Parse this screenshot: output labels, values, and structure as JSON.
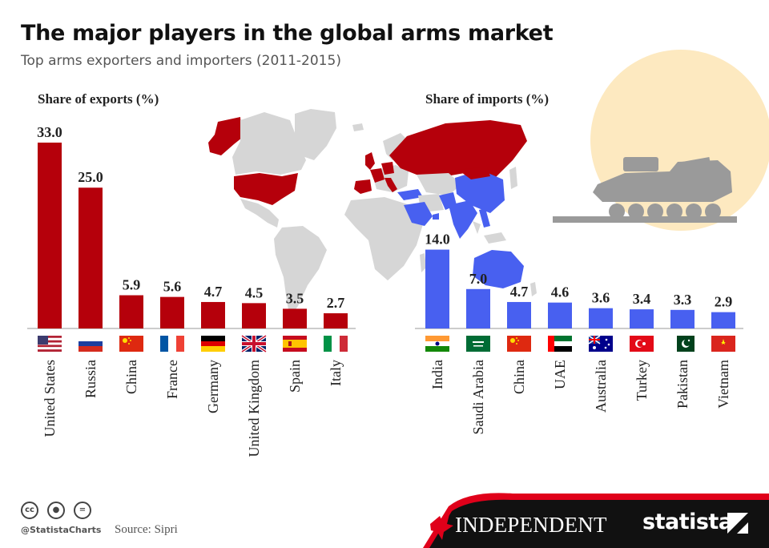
{
  "header": {
    "title": "The major players in the global arms market",
    "subtitle": "Top arms exporters and importers (2011-2015)"
  },
  "footer": {
    "handle": "@StatistaCharts",
    "source": "Source: Sipri",
    "independent_logo": "INDEPENDENT",
    "statista_logo": "statista",
    "license_icons": [
      "cc-icon",
      "by-icon",
      "nd-icon"
    ]
  },
  "colors": {
    "exports": "#b5000b",
    "imports": "#4860f0",
    "map_neutral": "#d6d6d6",
    "sun": "#fde9c0",
    "tank": "#9a9a9a",
    "footer": "#111111",
    "accent_red": "#e0001a"
  },
  "decor": {
    "icons": [
      "world-map-icon",
      "tank-icon",
      "sun-icon"
    ]
  },
  "chart_data": [
    {
      "type": "bar",
      "title": "Share of exports (%)",
      "categories": [
        "United States",
        "Russia",
        "China",
        "France",
        "Germany",
        "United Kingdom",
        "Spain",
        "Italy"
      ],
      "values": [
        33.0,
        25.0,
        5.9,
        5.6,
        4.7,
        4.5,
        3.5,
        2.7
      ],
      "flags": [
        "us",
        "ru",
        "cn",
        "fr",
        "de",
        "gb",
        "es",
        "it"
      ],
      "ylim": [
        0,
        33
      ],
      "grid": false,
      "data_labels": true
    },
    {
      "type": "bar",
      "title": "Share of imports (%)",
      "categories": [
        "India",
        "Saudi Arabia",
        "China",
        "UAE",
        "Australia",
        "Turkey",
        "Pakistan",
        "Vietnam"
      ],
      "values": [
        14.0,
        7.0,
        4.7,
        4.6,
        3.6,
        3.4,
        3.3,
        2.9
      ],
      "flags": [
        "in",
        "sa",
        "cn",
        "ae",
        "au",
        "tr",
        "pk",
        "vn"
      ],
      "ylim": [
        0,
        33
      ],
      "grid": false,
      "data_labels": true
    }
  ]
}
